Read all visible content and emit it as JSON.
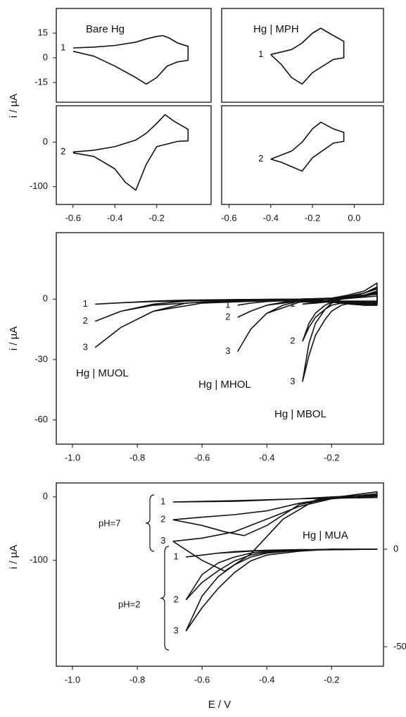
{
  "chart_data": [
    {
      "type": "line",
      "title": "Bare Hg",
      "ylabel": "i / µA",
      "color": "#111",
      "xlim": [
        -0.68,
        0.06
      ],
      "ylim": [
        -27,
        30
      ],
      "yticks": [
        15,
        0,
        -15
      ],
      "series": [
        {
          "name": "1",
          "x": [
            -0.6,
            -0.5,
            -0.4,
            -0.3,
            -0.25,
            -0.2,
            -0.17,
            -0.14,
            -0.1,
            -0.05,
            -0.05,
            -0.1,
            -0.15,
            -0.2,
            -0.25,
            -0.3,
            -0.4,
            -0.5,
            -0.6
          ],
          "values": [
            6,
            6.5,
            7.5,
            9.5,
            11.5,
            13,
            13.5,
            12,
            9,
            7,
            -1.5,
            -2.5,
            -5,
            -12,
            -16,
            -12,
            -5,
            1,
            4
          ]
        }
      ]
    },
    {
      "type": "line",
      "color": "#111",
      "xlim": [
        -0.68,
        0.06
      ],
      "ylim": [
        -140,
        82
      ],
      "yticks": [
        0,
        -100
      ],
      "xticks": [
        -0.6,
        -0.4,
        -0.2
      ],
      "series": [
        {
          "name": "2",
          "x": [
            -0.6,
            -0.5,
            -0.4,
            -0.3,
            -0.25,
            -0.2,
            -0.16,
            -0.12,
            -0.05,
            -0.05,
            -0.1,
            -0.2,
            -0.25,
            -0.3,
            -0.35,
            -0.4,
            -0.5,
            -0.6
          ],
          "values": [
            -22,
            -18,
            -10,
            5,
            20,
            42,
            62,
            48,
            29,
            3,
            2,
            -10,
            -50,
            -108,
            -90,
            -60,
            -32,
            -24
          ]
        }
      ]
    },
    {
      "type": "line",
      "title": "Hg | MPH",
      "color": "#111",
      "xlim": [
        -0.635,
        0.14
      ],
      "ylim": [
        -27,
        30
      ],
      "series": [
        {
          "name": "1",
          "x": [
            -0.4,
            -0.3,
            -0.25,
            -0.2,
            -0.16,
            -0.12,
            -0.05,
            -0.05,
            -0.1,
            -0.2,
            -0.25,
            -0.3,
            -0.35,
            -0.4
          ],
          "values": [
            2,
            5,
            9,
            15,
            18,
            15,
            10,
            0,
            -1,
            -9,
            -16,
            -12,
            -4,
            2
          ]
        }
      ]
    },
    {
      "type": "line",
      "color": "#111",
      "xlim": [
        -0.635,
        0.14
      ],
      "ylim": [
        -140,
        82
      ],
      "xticks": [
        -0.6,
        -0.4,
        -0.2,
        {
          "value": 0,
          "label": "0.0"
        }
      ],
      "series": [
        {
          "name": "2",
          "x": [
            -0.4,
            -0.3,
            -0.25,
            -0.2,
            -0.16,
            -0.1,
            -0.05,
            -0.05,
            -0.1,
            -0.2,
            -0.25,
            -0.3,
            -0.35,
            -0.4
          ],
          "values": [
            -38,
            -20,
            0,
            30,
            45,
            30,
            22,
            2,
            -2,
            -35,
            -65,
            -55,
            -45,
            -38
          ]
        }
      ]
    },
    {
      "type": "line",
      "ylabel": "i / µA",
      "color": "#111",
      "xlim": [
        -1.05,
        -0.04
      ],
      "ylim": [
        -72,
        33
      ],
      "yticks": [
        0,
        -30,
        -60
      ],
      "xticks": [
        {
          "value": -1,
          "label": "-1.0"
        },
        -0.8,
        -0.6,
        -0.4,
        -0.2
      ],
      "groups": [
        {
          "label": "Hg | MUOL",
          "series": [
            {
              "name": "1",
              "x": [
                -0.93,
                -0.85,
                -0.75,
                -0.65,
                -0.5,
                -0.3,
                -0.2,
                -0.15,
                -0.1,
                -0.06,
                -0.06,
                -0.1,
                -0.2,
                -0.4,
                -0.6,
                -0.75,
                -0.85,
                -0.93
              ],
              "values": [
                -2.5,
                -1.8,
                -1,
                -0.5,
                -0.2,
                0,
                0.3,
                1,
                2,
                3.5,
                -2,
                -2,
                -1,
                -0.6,
                -0.8,
                -1.2,
                -1.8,
                -2.5
              ]
            },
            {
              "name": "2",
              "x": [
                -0.93,
                -0.85,
                -0.75,
                -0.65,
                -0.5,
                -0.3,
                -0.2,
                -0.15,
                -0.1,
                -0.06,
                -0.06,
                -0.1,
                -0.2,
                -0.4,
                -0.6,
                -0.75,
                -0.85,
                -0.93
              ],
              "values": [
                -11,
                -6,
                -2.5,
                -1,
                -0.3,
                0,
                0.5,
                1.5,
                3,
                5.5,
                -1.5,
                -1.5,
                -1,
                -0.8,
                -1.5,
                -3,
                -6,
                -11
              ]
            },
            {
              "name": "3",
              "x": [
                -0.93,
                -0.85,
                -0.75,
                -0.65,
                -0.5,
                -0.3,
                -0.2,
                -0.15,
                -0.1,
                -0.06,
                -0.06,
                -0.1,
                -0.2,
                -0.4,
                -0.6,
                -0.75,
                -0.85,
                -0.93
              ],
              "values": [
                -24,
                -14,
                -6,
                -2,
                -0.5,
                0,
                0.5,
                2,
                4,
                8,
                -1,
                -1,
                -1,
                -0.8,
                -2,
                -6,
                -14,
                -24
              ]
            }
          ]
        },
        {
          "label": "Hg | MHOL",
          "series": [
            {
              "name": "1",
              "x": [
                -0.49,
                -0.45,
                -0.4,
                -0.35,
                -0.3,
                -0.2,
                -0.15,
                -0.1,
                -0.06,
                -0.06,
                -0.1,
                -0.2,
                -0.3,
                -0.4,
                -0.45,
                -0.49
              ],
              "values": [
                -3,
                -2,
                -1.2,
                -0.7,
                -0.4,
                0,
                0.5,
                1.5,
                2.5,
                -2.5,
                -2.5,
                -1.5,
                -0.5,
                -1.2,
                -2,
                -3
              ]
            },
            {
              "name": "2",
              "x": [
                -0.49,
                -0.45,
                -0.4,
                -0.35,
                -0.3,
                -0.2,
                -0.15,
                -0.1,
                -0.06,
                -0.06,
                -0.1,
                -0.2,
                -0.3,
                -0.4,
                -0.45,
                -0.49
              ],
              "values": [
                -9,
                -6,
                -3,
                -1.5,
                -0.7,
                0,
                0.8,
                2,
                4,
                -2,
                -2,
                -1,
                -1,
                -3,
                -6,
                -9
              ]
            },
            {
              "name": "3",
              "x": [
                -0.49,
                -0.45,
                -0.4,
                -0.35,
                -0.3,
                -0.2,
                -0.15,
                -0.1,
                -0.06,
                -0.06,
                -0.1,
                -0.2,
                -0.3,
                -0.4,
                -0.45,
                -0.49
              ],
              "values": [
                -26,
                -15,
                -7,
                -3,
                -1,
                0,
                1,
                3,
                6,
                -1.5,
                -1.5,
                -1,
                -1.5,
                -7,
                -15,
                -26
              ]
            }
          ]
        },
        {
          "label": "Hg | MBOL",
          "series": [
            {
              "name": "1",
              "x": [
                -0.29,
                -0.27,
                -0.25,
                -0.22,
                -0.2,
                -0.17,
                -0.14,
                -0.1,
                -0.06,
                -0.06,
                -0.1,
                -0.14,
                -0.17,
                -0.2,
                -0.22,
                -0.25,
                -0.27,
                -0.29
              ],
              "values": [
                -2.5,
                -2,
                -1.5,
                -1,
                -0.5,
                0,
                0.5,
                1,
                1.5,
                -3,
                -3,
                -2.5,
                -2,
                -1.5,
                -1.5,
                -2,
                -2.2,
                -2.5
              ]
            },
            {
              "name": "2",
              "x": [
                -0.29,
                -0.27,
                -0.25,
                -0.22,
                -0.2,
                -0.17,
                -0.14,
                -0.1,
                -0.06,
                -0.06,
                -0.1,
                -0.14,
                -0.17,
                -0.2,
                -0.22,
                -0.25,
                -0.27,
                -0.29
              ],
              "values": [
                -21,
                -12,
                -7,
                -3,
                -1.5,
                0,
                1,
                2,
                3,
                -3,
                -3,
                -2.5,
                -2,
                -3,
                -5,
                -9,
                -14,
                -21
              ]
            },
            {
              "name": "3",
              "x": [
                -0.29,
                -0.27,
                -0.25,
                -0.22,
                -0.2,
                -0.17,
                -0.14,
                -0.1,
                -0.06,
                -0.06,
                -0.1,
                -0.14,
                -0.17,
                -0.2,
                -0.22,
                -0.25,
                -0.27,
                -0.29
              ],
              "values": [
                -41,
                -22,
                -12,
                -5,
                -2,
                0,
                1,
                3,
                5,
                -2,
                -2,
                -2,
                -3,
                -6,
                -10,
                -18,
                -28,
                -41
              ]
            }
          ]
        }
      ]
    },
    {
      "type": "line",
      "title": "Hg | MUA",
      "ylabel": "i / µA",
      "xlabel": "E / V",
      "color": "#111",
      "xlim": [
        -1.05,
        -0.04
      ],
      "ylim": [
        -267,
        22
      ],
      "yticks": [
        0,
        -100
      ],
      "y2lim": [
        -60,
        34
      ],
      "y2ticks": [
        0,
        -50
      ],
      "xticks": [
        {
          "value": -1,
          "label": "-1.0"
        },
        -0.8,
        -0.6,
        -0.4,
        -0.2
      ],
      "groups": [
        {
          "label": "pH=7",
          "series": [
            {
              "name": "1",
              "x": [
                -0.69,
                -0.5,
                -0.3,
                -0.2,
                -0.06,
                -0.06,
                -0.3,
                -0.5,
                -0.69
              ],
              "values": [
                -8,
                -7,
                -3,
                0,
                3,
                -1,
                -3,
                -6,
                -8
              ]
            },
            {
              "name": "2",
              "x": [
                -0.69,
                -0.6,
                -0.53,
                -0.47,
                -0.4,
                -0.3,
                -0.2,
                -0.06,
                -0.06,
                -0.2,
                -0.3,
                -0.4,
                -0.5,
                -0.6,
                -0.69
              ],
              "values": [
                -36,
                -45,
                -55,
                -61,
                -45,
                -12,
                -2,
                5,
                1,
                -2,
                -10,
                -22,
                -28,
                -32,
                -36
              ]
            },
            {
              "name": "3",
              "x": [
                -0.69,
                -0.6,
                -0.53,
                -0.45,
                -0.35,
                -0.25,
                -0.15,
                -0.06,
                -0.06,
                -0.2,
                -0.3,
                -0.4,
                -0.5,
                -0.6,
                -0.69
              ],
              "values": [
                -70,
                -100,
                -117,
                -90,
                -35,
                -5,
                2,
                8,
                2,
                -3,
                -15,
                -35,
                -55,
                -65,
                -70
              ]
            }
          ]
        },
        {
          "label": "pH=2",
          "series": [
            {
              "name": "1",
              "axis": "y2",
              "x": [
                -0.65,
                -0.6,
                -0.55,
                -0.5,
                -0.45,
                -0.4,
                -0.3,
                -0.2,
                -0.06,
                -0.06,
                -0.3,
                -0.4,
                -0.45,
                -0.5,
                -0.55,
                -0.6,
                -0.65
              ],
              "values": [
                -4,
                -3,
                -2,
                -1.5,
                -1,
                -0.6,
                -0.3,
                0,
                0,
                0,
                -0.2,
                -0.5,
                -0.8,
                -1.2,
                -2,
                -3,
                -4
              ]
            },
            {
              "name": "2",
              "axis": "y2",
              "x": [
                -0.65,
                -0.6,
                -0.55,
                -0.5,
                -0.45,
                -0.4,
                -0.3,
                -0.2,
                -0.06,
                -0.06,
                -0.3,
                -0.4,
                -0.45,
                -0.5,
                -0.55,
                -0.6,
                -0.65
              ],
              "values": [
                -26,
                -17,
                -11,
                -6,
                -3,
                -1.5,
                -0.5,
                0,
                0,
                0,
                -0.3,
                -1,
                -2,
                -4,
                -7,
                -13,
                -26
              ]
            },
            {
              "name": "3",
              "axis": "y2",
              "x": [
                -0.65,
                -0.6,
                -0.55,
                -0.5,
                -0.45,
                -0.4,
                -0.3,
                -0.2,
                -0.06,
                -0.06,
                -0.3,
                -0.4,
                -0.45,
                -0.5,
                -0.55,
                -0.6,
                -0.65
              ],
              "values": [
                -42,
                -30,
                -20,
                -12,
                -6,
                -3,
                -1,
                0,
                0,
                0,
                -0.5,
                -2,
                -4,
                -8,
                -14,
                -24,
                -42
              ]
            }
          ]
        }
      ]
    }
  ]
}
